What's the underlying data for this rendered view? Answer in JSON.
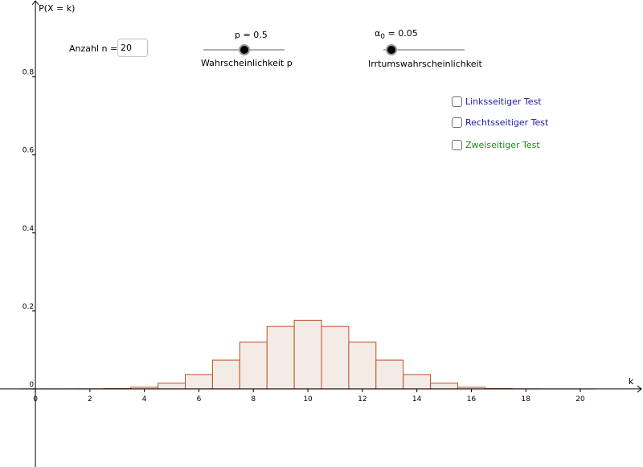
{
  "controls": {
    "n_label": "Anzahl  n =",
    "n_value": "20",
    "p_value_label": "p = 0.5",
    "p_caption": "Wahrscheinlichkeit p",
    "alpha_symbol": "α",
    "alpha_sub": "0",
    "alpha_value_label": " = 0.05",
    "alpha_caption": "Irrtumswahrscheinlichkeit",
    "p_value": 0.5,
    "alpha_value": 0.05
  },
  "checkboxes": [
    {
      "label": "Linksseitiger Test",
      "checked": false,
      "color": "#1a1aa6"
    },
    {
      "label": "Rechtsseitiger Test",
      "checked": false,
      "color": "#1a1aa6"
    },
    {
      "label": "Zweiseitiger Test",
      "checked": false,
      "color": "#1a8a1a"
    }
  ],
  "chart_data": {
    "type": "bar",
    "xlabel": "k",
    "ylabel": "P(X = k)",
    "x": [
      0,
      1,
      2,
      3,
      4,
      5,
      6,
      7,
      8,
      9,
      10,
      11,
      12,
      13,
      14,
      15,
      16,
      17,
      18,
      19,
      20
    ],
    "values": [
      1e-06,
      2e-05,
      0.0002,
      0.0011,
      0.0046,
      0.0148,
      0.037,
      0.0739,
      0.1201,
      0.1602,
      0.1762,
      0.1602,
      0.1201,
      0.0739,
      0.037,
      0.0148,
      0.0046,
      0.0011,
      0.0002,
      2e-05,
      1e-06
    ],
    "xticks": [
      0,
      2,
      4,
      6,
      8,
      10,
      12,
      14,
      16,
      18,
      20
    ],
    "yticks": [
      0,
      0.2,
      0.4,
      0.6,
      0.8
    ],
    "ytick_labels": [
      "0",
      "0.2",
      "0.4",
      "0.6",
      "0.8"
    ],
    "xlim": [
      -1.3,
      22.3
    ],
    "ylim": [
      -0.2,
      0.997
    ],
    "bar_fill": "#f5ebe6",
    "bar_stroke": "#b8501e"
  }
}
